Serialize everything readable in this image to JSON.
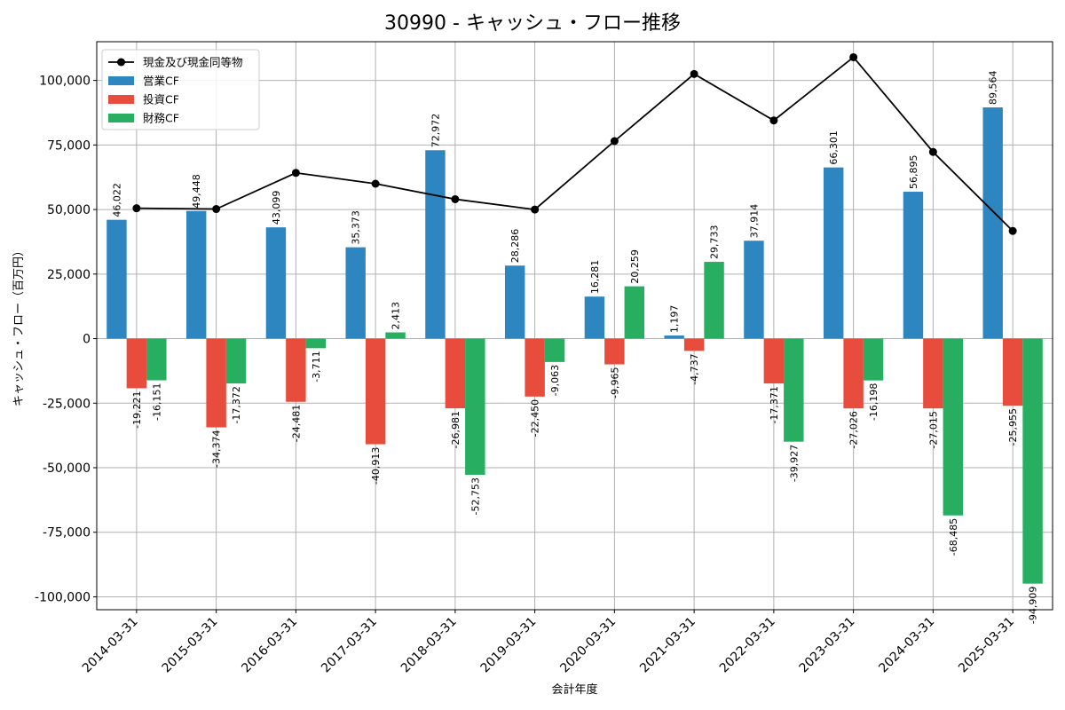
{
  "chart_data": {
    "type": "bar",
    "title": "30990 - キャッシュ・フロー推移",
    "xlabel": "会計年度",
    "ylabel": "キャッシュ・フロー（百万円）",
    "categories": [
      "2014-03-31",
      "2015-03-31",
      "2016-03-31",
      "2017-03-31",
      "2018-03-31",
      "2019-03-31",
      "2020-03-31",
      "2021-03-31",
      "2022-03-31",
      "2023-03-31",
      "2024-03-31",
      "2025-03-31"
    ],
    "ylim": [
      -105000,
      115000
    ],
    "yticks": [
      -100000,
      -75000,
      -50000,
      -25000,
      0,
      25000,
      50000,
      75000,
      100000
    ],
    "ytick_labels": [
      "-100,000",
      "-75,000",
      "-50,000",
      "-25,000",
      "0",
      "25,000",
      "50,000",
      "75,000",
      "100,000"
    ],
    "grid": true,
    "legend_position": "top-left",
    "series": [
      {
        "name": "営業CF",
        "kind": "bar",
        "color": "#2e86c1",
        "values": [
          46022,
          49448,
          43099,
          35373,
          72972,
          28286,
          16281,
          1197,
          37914,
          66301,
          56895,
          89564
        ],
        "labels": [
          "46,022",
          "49,448",
          "43,099",
          "35,373",
          "72,972",
          "28,286",
          "16,281",
          "1,197",
          "37,914",
          "66,301",
          "56,895",
          "89,564"
        ]
      },
      {
        "name": "投資CF",
        "kind": "bar",
        "color": "#e74c3c",
        "values": [
          -19221,
          -34374,
          -24481,
          -40913,
          -26981,
          -22450,
          -9965,
          -4737,
          -17371,
          -27026,
          -27015,
          -25955
        ],
        "labels": [
          "-19,221",
          "-34,374",
          "-24,481",
          "-40,913",
          "-26,981",
          "-22,450",
          "-9,965",
          "-4,737",
          "-17,371",
          "-27,026",
          "-27,015",
          "-25,955"
        ]
      },
      {
        "name": "財務CF",
        "kind": "bar",
        "color": "#27ae60",
        "values": [
          -16151,
          -17372,
          -3711,
          2413,
          -52753,
          -9063,
          20259,
          29733,
          -39927,
          -16198,
          -68485,
          -94909
        ],
        "labels": [
          "-16,151",
          "-17,372",
          "-3,711",
          "2,413",
          "-52,753",
          "-9,063",
          "20,259",
          "29,733",
          "-39,927",
          "-16,198",
          "-68,485",
          "-94,909"
        ]
      },
      {
        "name": "現金及び現金同等物",
        "kind": "line",
        "color": "#000000",
        "values": [
          50500,
          50200,
          64200,
          60000,
          54000,
          50000,
          76500,
          102500,
          84500,
          109000,
          72300,
          41700
        ]
      }
    ]
  }
}
